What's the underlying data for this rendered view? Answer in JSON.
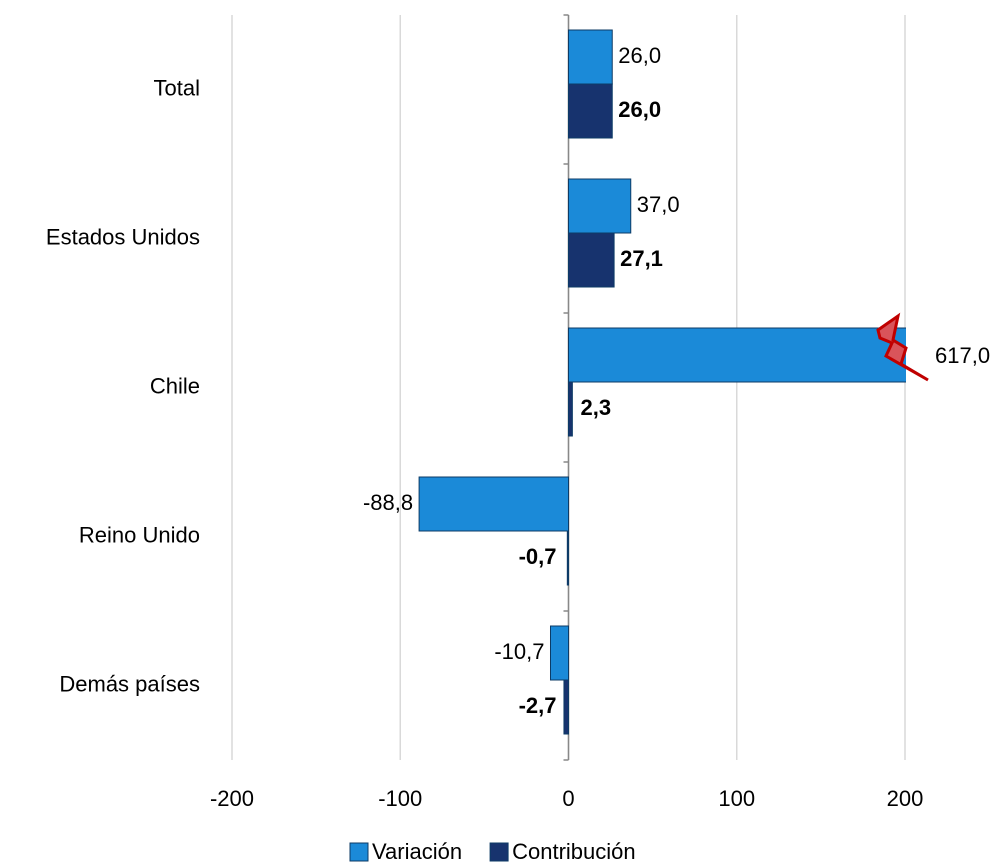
{
  "chart_data": {
    "type": "bar",
    "orientation": "horizontal",
    "categories": [
      "Total",
      "Estados Unidos",
      "Chile",
      "Reino Unido",
      "Demás países"
    ],
    "series": [
      {
        "name": "Variación",
        "color": "#1b8ad8",
        "values": [
          26.0,
          37.0,
          617.0,
          -88.8,
          -10.7
        ],
        "value_labels": [
          "26,0",
          "37,0",
          "617,0",
          "-88,8",
          "-10,7"
        ],
        "label_bold": false
      },
      {
        "name": "Contribución",
        "color": "#17336e",
        "values": [
          26.0,
          27.1,
          2.3,
          -0.7,
          -2.7
        ],
        "value_labels": [
          "26,0",
          "27,1",
          "2,3",
          "-0,7",
          "-2,7"
        ],
        "label_bold": true
      }
    ],
    "xlim": [
      -200,
      200
    ],
    "xticks": [
      -200,
      -100,
      0,
      100,
      200
    ],
    "grid": true,
    "legend": "bottom"
  }
}
